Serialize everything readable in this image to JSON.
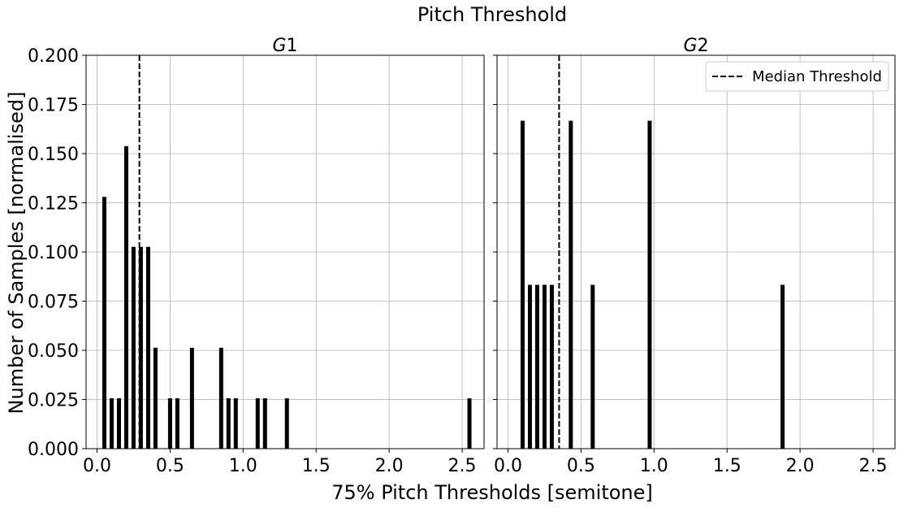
{
  "figure": {
    "suptitle": "Pitch Threshold",
    "xlabel": "75% Pitch Thresholds [semitone]",
    "ylabel": "Number of Samples [normalised]"
  },
  "chart_data": [
    {
      "type": "bar",
      "title_main": "G",
      "title_sub": "1",
      "xlim": [
        -0.075,
        2.65
      ],
      "ylim": [
        0,
        0.2
      ],
      "xticks": [
        0.0,
        0.5,
        1.0,
        1.5,
        2.0,
        2.5
      ],
      "xtick_labels": [
        "0.0",
        "0.5",
        "1.0",
        "1.5",
        "2.0",
        "2.5"
      ],
      "yticks": [
        0,
        0.025,
        0.05,
        0.075,
        0.1,
        0.125,
        0.15,
        0.175,
        0.2
      ],
      "ytick_labels": [
        "0.000",
        "0.025",
        "0.050",
        "0.075",
        "0.100",
        "0.125",
        "0.150",
        "0.175",
        "0.200"
      ],
      "grid": true,
      "bar_color": "#000000",
      "x": [
        0.05,
        0.1,
        0.15,
        0.2,
        0.25,
        0.3,
        0.35,
        0.4,
        0.5,
        0.55,
        0.65,
        0.85,
        0.9,
        0.95,
        1.1,
        1.15,
        1.3,
        2.55
      ],
      "values": [
        0.128,
        0.0256,
        0.0256,
        0.1538,
        0.1026,
        0.1026,
        0.1026,
        0.0513,
        0.0256,
        0.0256,
        0.0513,
        0.0513,
        0.0256,
        0.0256,
        0.0256,
        0.0256,
        0.0256,
        0.0256
      ],
      "median_threshold": 0.29
    },
    {
      "type": "bar",
      "title_main": "G",
      "title_sub": "2",
      "xlim": [
        -0.075,
        2.65
      ],
      "ylim": [
        0,
        0.2
      ],
      "xticks": [
        0.0,
        0.5,
        1.0,
        1.5,
        2.0,
        2.5
      ],
      "xtick_labels": [
        "0.0",
        "0.5",
        "1.0",
        "1.5",
        "2.0",
        "2.5"
      ],
      "grid": true,
      "bar_color": "#000000",
      "x": [
        0.1,
        0.15,
        0.2,
        0.25,
        0.3,
        0.43,
        0.58,
        0.97,
        1.88
      ],
      "values": [
        0.1667,
        0.0833,
        0.0833,
        0.0833,
        0.0833,
        0.1667,
        0.0833,
        0.1667,
        0.0833
      ],
      "median_threshold": 0.35,
      "legend": {
        "label": "Median Threshold",
        "position": "top-right"
      }
    }
  ]
}
